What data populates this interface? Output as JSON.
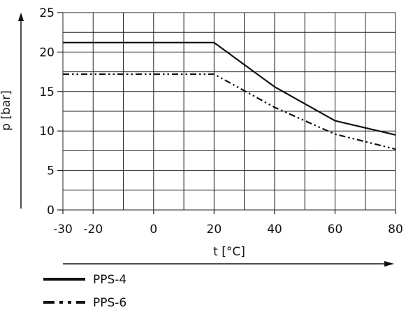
{
  "chart_data": {
    "type": "line",
    "xlabel": "t [°C]",
    "ylabel": "p [bar]",
    "xlim": [
      -30,
      80
    ],
    "ylim": [
      0,
      25
    ],
    "x_ticks": [
      -30,
      -20,
      0,
      20,
      40,
      60,
      80
    ],
    "x_tick_labels": [
      "-30",
      "-20",
      "0",
      "20",
      "40",
      "60",
      "80"
    ],
    "y_ticks": [
      0,
      5,
      10,
      15,
      20,
      25
    ],
    "y_tick_labels": [
      "0",
      "5",
      "10",
      "15",
      "20",
      "25"
    ],
    "grid": true,
    "legend_position": "bottom-left",
    "series": [
      {
        "name": "PPS-4",
        "style": "solid",
        "color": "#111111",
        "x": [
          -30,
          20,
          40,
          60,
          80
        ],
        "y": [
          21.2,
          21.2,
          15.6,
          11.3,
          9.5
        ]
      },
      {
        "name": "PPS-6",
        "style": "dash-dot-dot",
        "color": "#111111",
        "x": [
          -30,
          20,
          40,
          60,
          80
        ],
        "y": [
          17.2,
          17.2,
          13.0,
          9.6,
          7.7
        ]
      }
    ]
  }
}
